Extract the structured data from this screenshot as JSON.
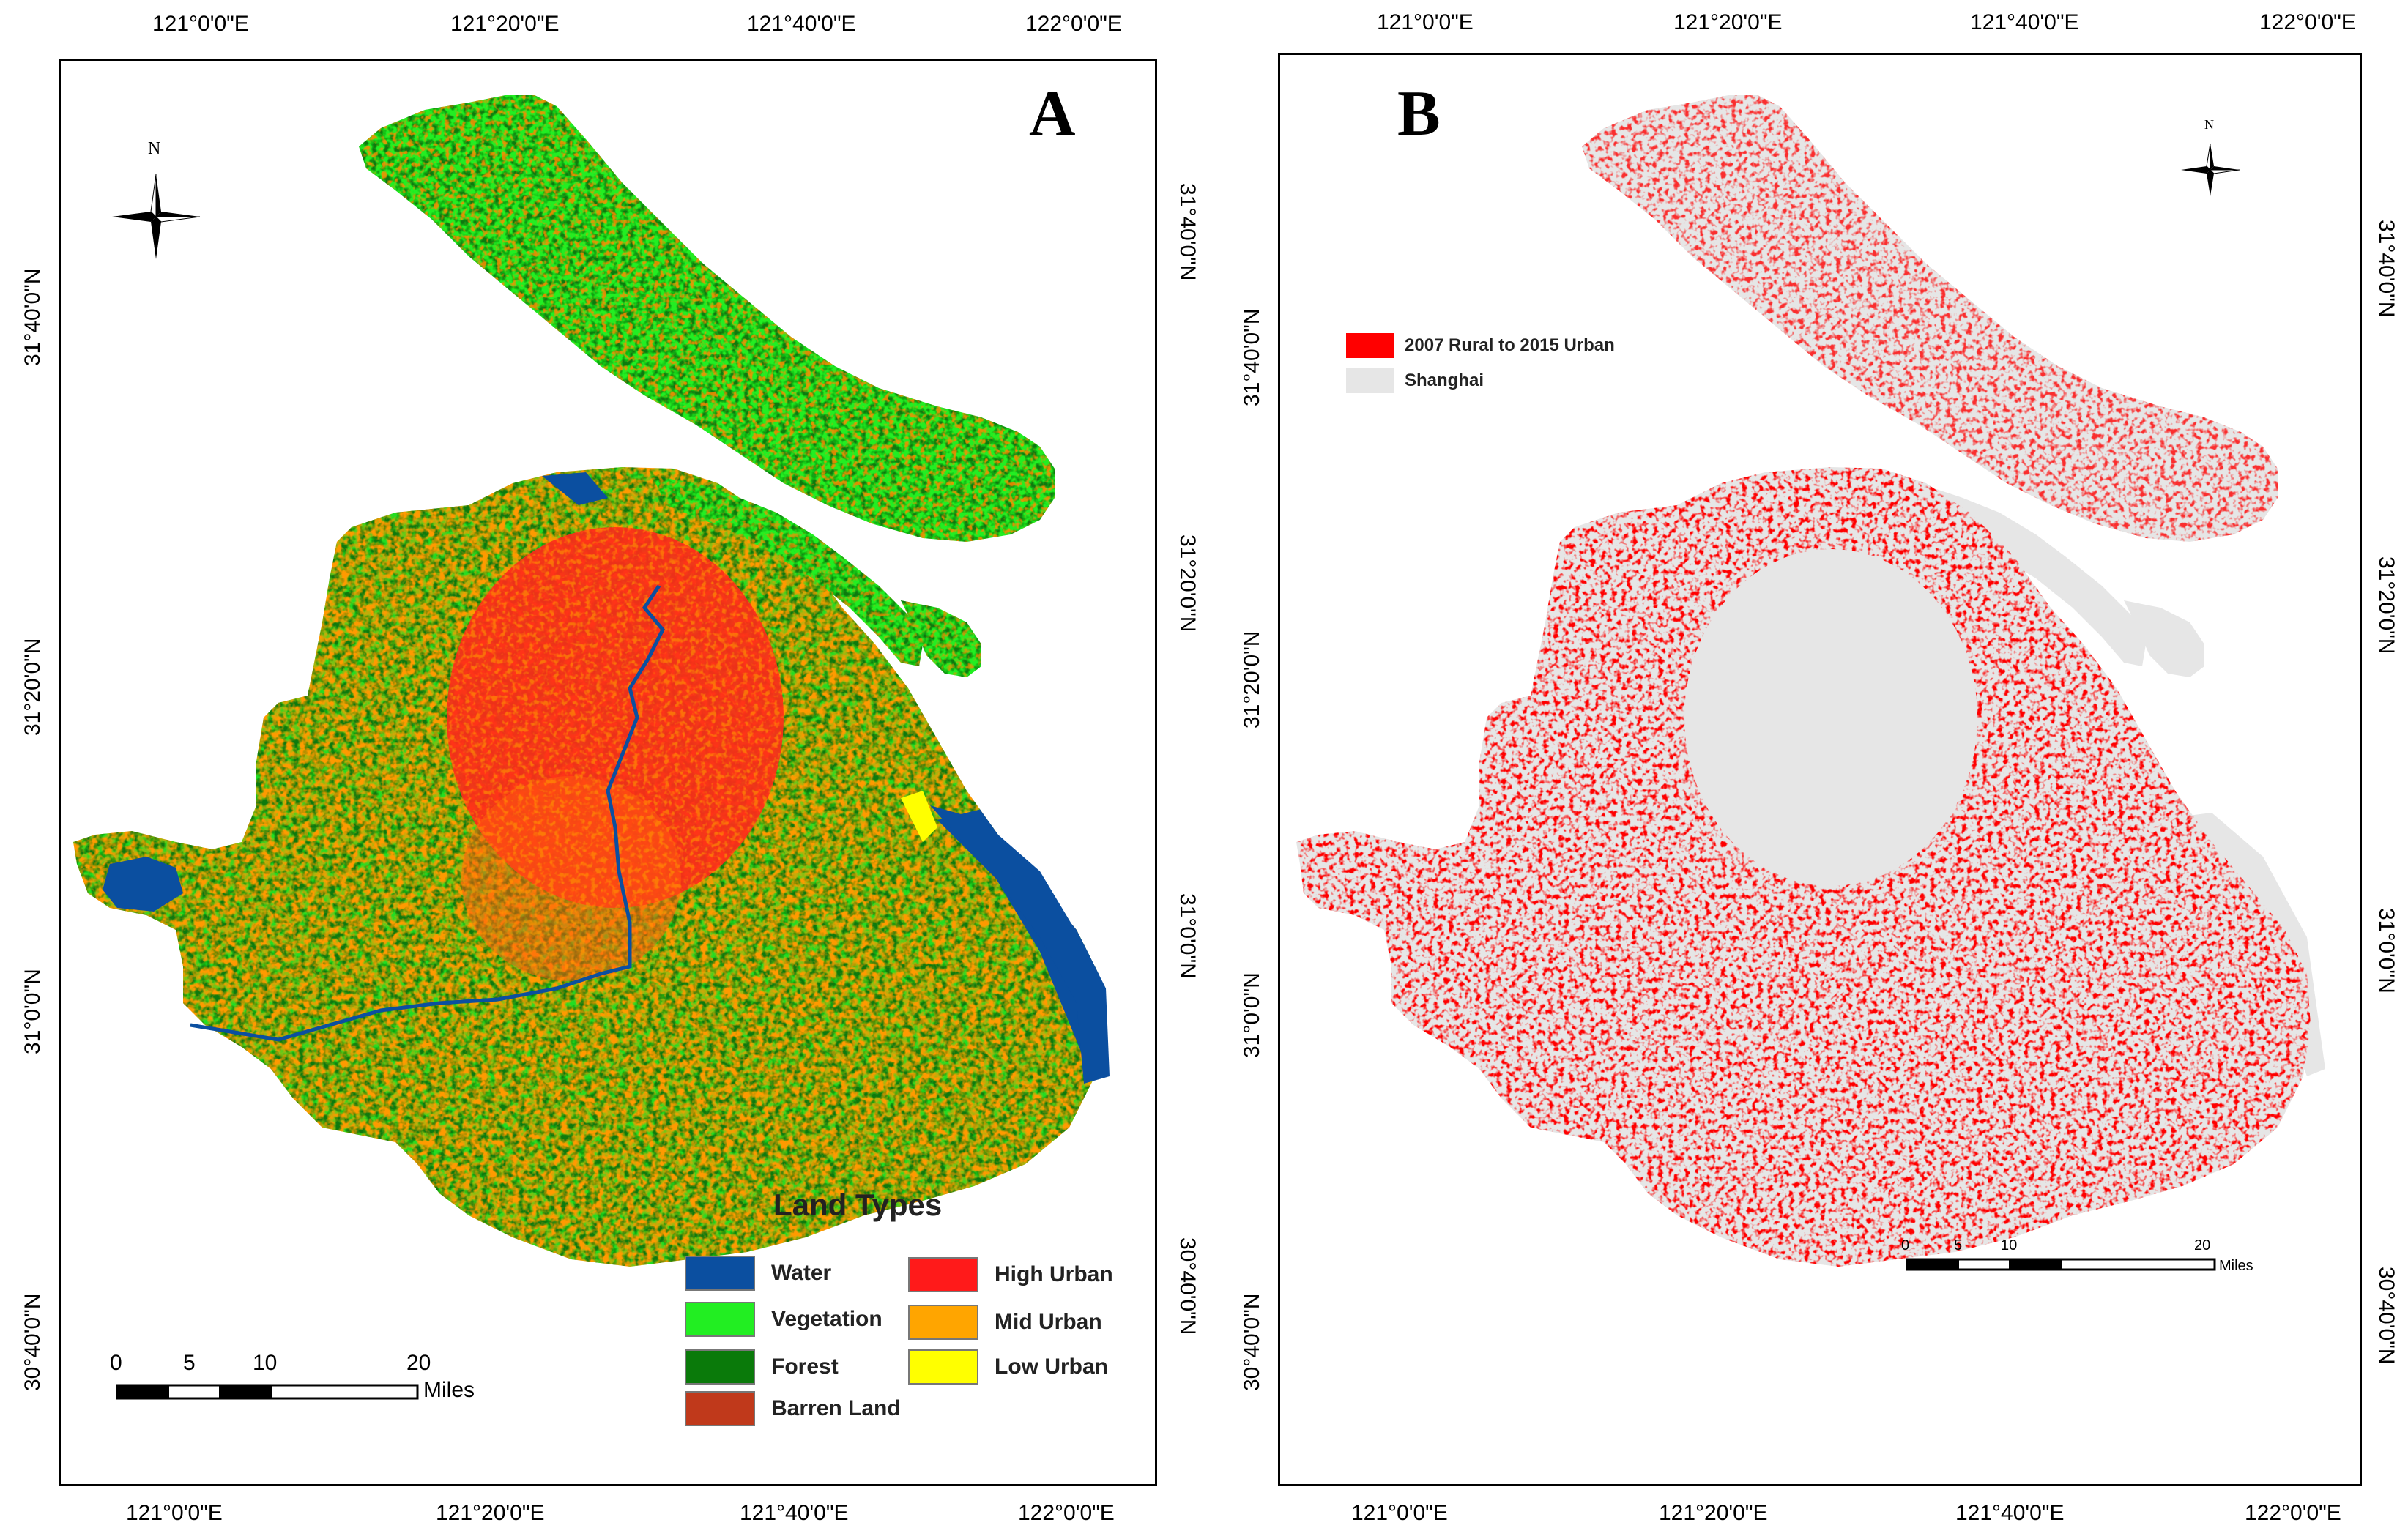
{
  "panel_a": {
    "letter": "A",
    "top_ticks": [
      "121°0'0\"E",
      "121°20'0\"E",
      "121°40'0\"E",
      "122°0'0\"E"
    ],
    "bottom_ticks": [
      "121°0'0\"E",
      "121°20'0\"E",
      "121°40'0\"E",
      "122°0'0\"E"
    ],
    "left_ticks": [
      "31°40'0\"N",
      "31°20'0\"N",
      "31°0'0\"N",
      "30°40'0\"N"
    ],
    "right_ticks": [
      "31°40'0\"N",
      "31°20'0\"N",
      "31°0'0\"N",
      "30°40'0\"N"
    ],
    "north": "N",
    "legend": {
      "title": "Land Types",
      "items": [
        {
          "label": "Water",
          "color": "#0b4fa0"
        },
        {
          "label": "High Urban",
          "color": "#ff1a1a"
        },
        {
          "label": "Vegetation",
          "color": "#22ee22"
        },
        {
          "label": "Mid Urban",
          "color": "#ffa500"
        },
        {
          "label": "Forest",
          "color": "#0a7a0a"
        },
        {
          "label": "Low Urban",
          "color": "#ffff00"
        },
        {
          "label": "Barren Land",
          "color": "#c0391b"
        }
      ]
    },
    "scalebar": {
      "ticks": [
        "0",
        "5",
        "10",
        "20"
      ],
      "unit": "Miles"
    }
  },
  "panel_b": {
    "letter": "B",
    "top_ticks": [
      "121°0'0\"E",
      "121°20'0\"E",
      "121°40'0\"E",
      "122°0'0\"E"
    ],
    "bottom_ticks": [
      "121°0'0\"E",
      "121°20'0\"E",
      "121°40'0\"E",
      "122°0'0\"E"
    ],
    "left_ticks": [
      "31°40'0\"N",
      "31°20'0\"N",
      "31°0'0\"N",
      "30°40'0\"N"
    ],
    "right_ticks": [
      "31°40'0\"N",
      "31°20'0\"N",
      "31°0'0\"N",
      "30°40'0\"N"
    ],
    "north": "N",
    "legend": [
      {
        "label": "2007 Rural to 2015 Urban",
        "color": "#ff0000"
      },
      {
        "label": "Shanghai",
        "color": "#e6e6e6"
      }
    ],
    "scalebar": {
      "ticks": [
        "0",
        "5",
        "10",
        "20"
      ],
      "unit": "Miles"
    }
  },
  "colors": {
    "water": "#0b4fa0",
    "vegetation": "#22ee22",
    "forest": "#0a7a0a",
    "high_urban": "#ff1a1a",
    "mid_urban": "#ffa500",
    "low_urban": "#ffff00",
    "barren": "#c0391b",
    "shanghai": "#e6e6e6",
    "change": "#ff0000"
  }
}
